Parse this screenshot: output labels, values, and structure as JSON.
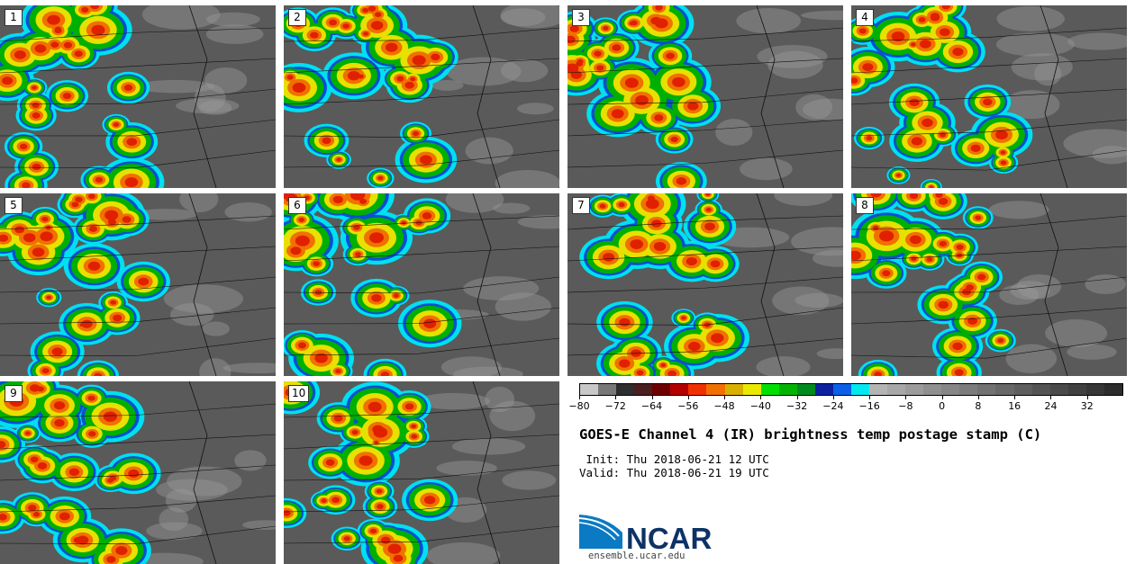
{
  "panels": [
    {
      "label": "1"
    },
    {
      "label": "2"
    },
    {
      "label": "3"
    },
    {
      "label": "4"
    },
    {
      "label": "5"
    },
    {
      "label": "6"
    },
    {
      "label": "7"
    },
    {
      "label": "8"
    },
    {
      "label": "9"
    },
    {
      "label": "10"
    }
  ],
  "colorbar": {
    "min": -80,
    "max": 40,
    "tick_labels": [
      "−80",
      "−72",
      "−64",
      "−56",
      "−48",
      "−40",
      "−32",
      "−24",
      "−16",
      "−8",
      "0",
      "8",
      "16",
      "24",
      "32"
    ],
    "tick_values": [
      -80,
      -72,
      -64,
      -56,
      -48,
      -40,
      -32,
      -24,
      -16,
      -8,
      0,
      8,
      16,
      24,
      32
    ],
    "colors": [
      "#c8c8c8",
      "#787878",
      "#2e2e2e",
      "#4a1f1f",
      "#6e0000",
      "#b40000",
      "#f03000",
      "#f07000",
      "#d8b000",
      "#eaea00",
      "#00e000",
      "#00b400",
      "#008a20",
      "#0c20a0",
      "#0a60e8",
      "#00e8f0",
      "#b4b4b4",
      "#a8a8a8",
      "#9c9c9c",
      "#909090",
      "#868686",
      "#7c7c7c",
      "#727272",
      "#686868",
      "#5e5e5e",
      "#545454",
      "#4a4a4a",
      "#404040",
      "#363636",
      "#2c2c2c"
    ]
  },
  "title": "GOES-E Channel 4 (IR) brightness temp postage stamp (C)",
  "init_text": " Init: Thu 2018-06-21 12 UTC",
  "valid_text": "Valid: Thu 2018-06-21 19 UTC",
  "logo_text": "NCAR",
  "site_text": "ensemble.ucar.edu"
}
